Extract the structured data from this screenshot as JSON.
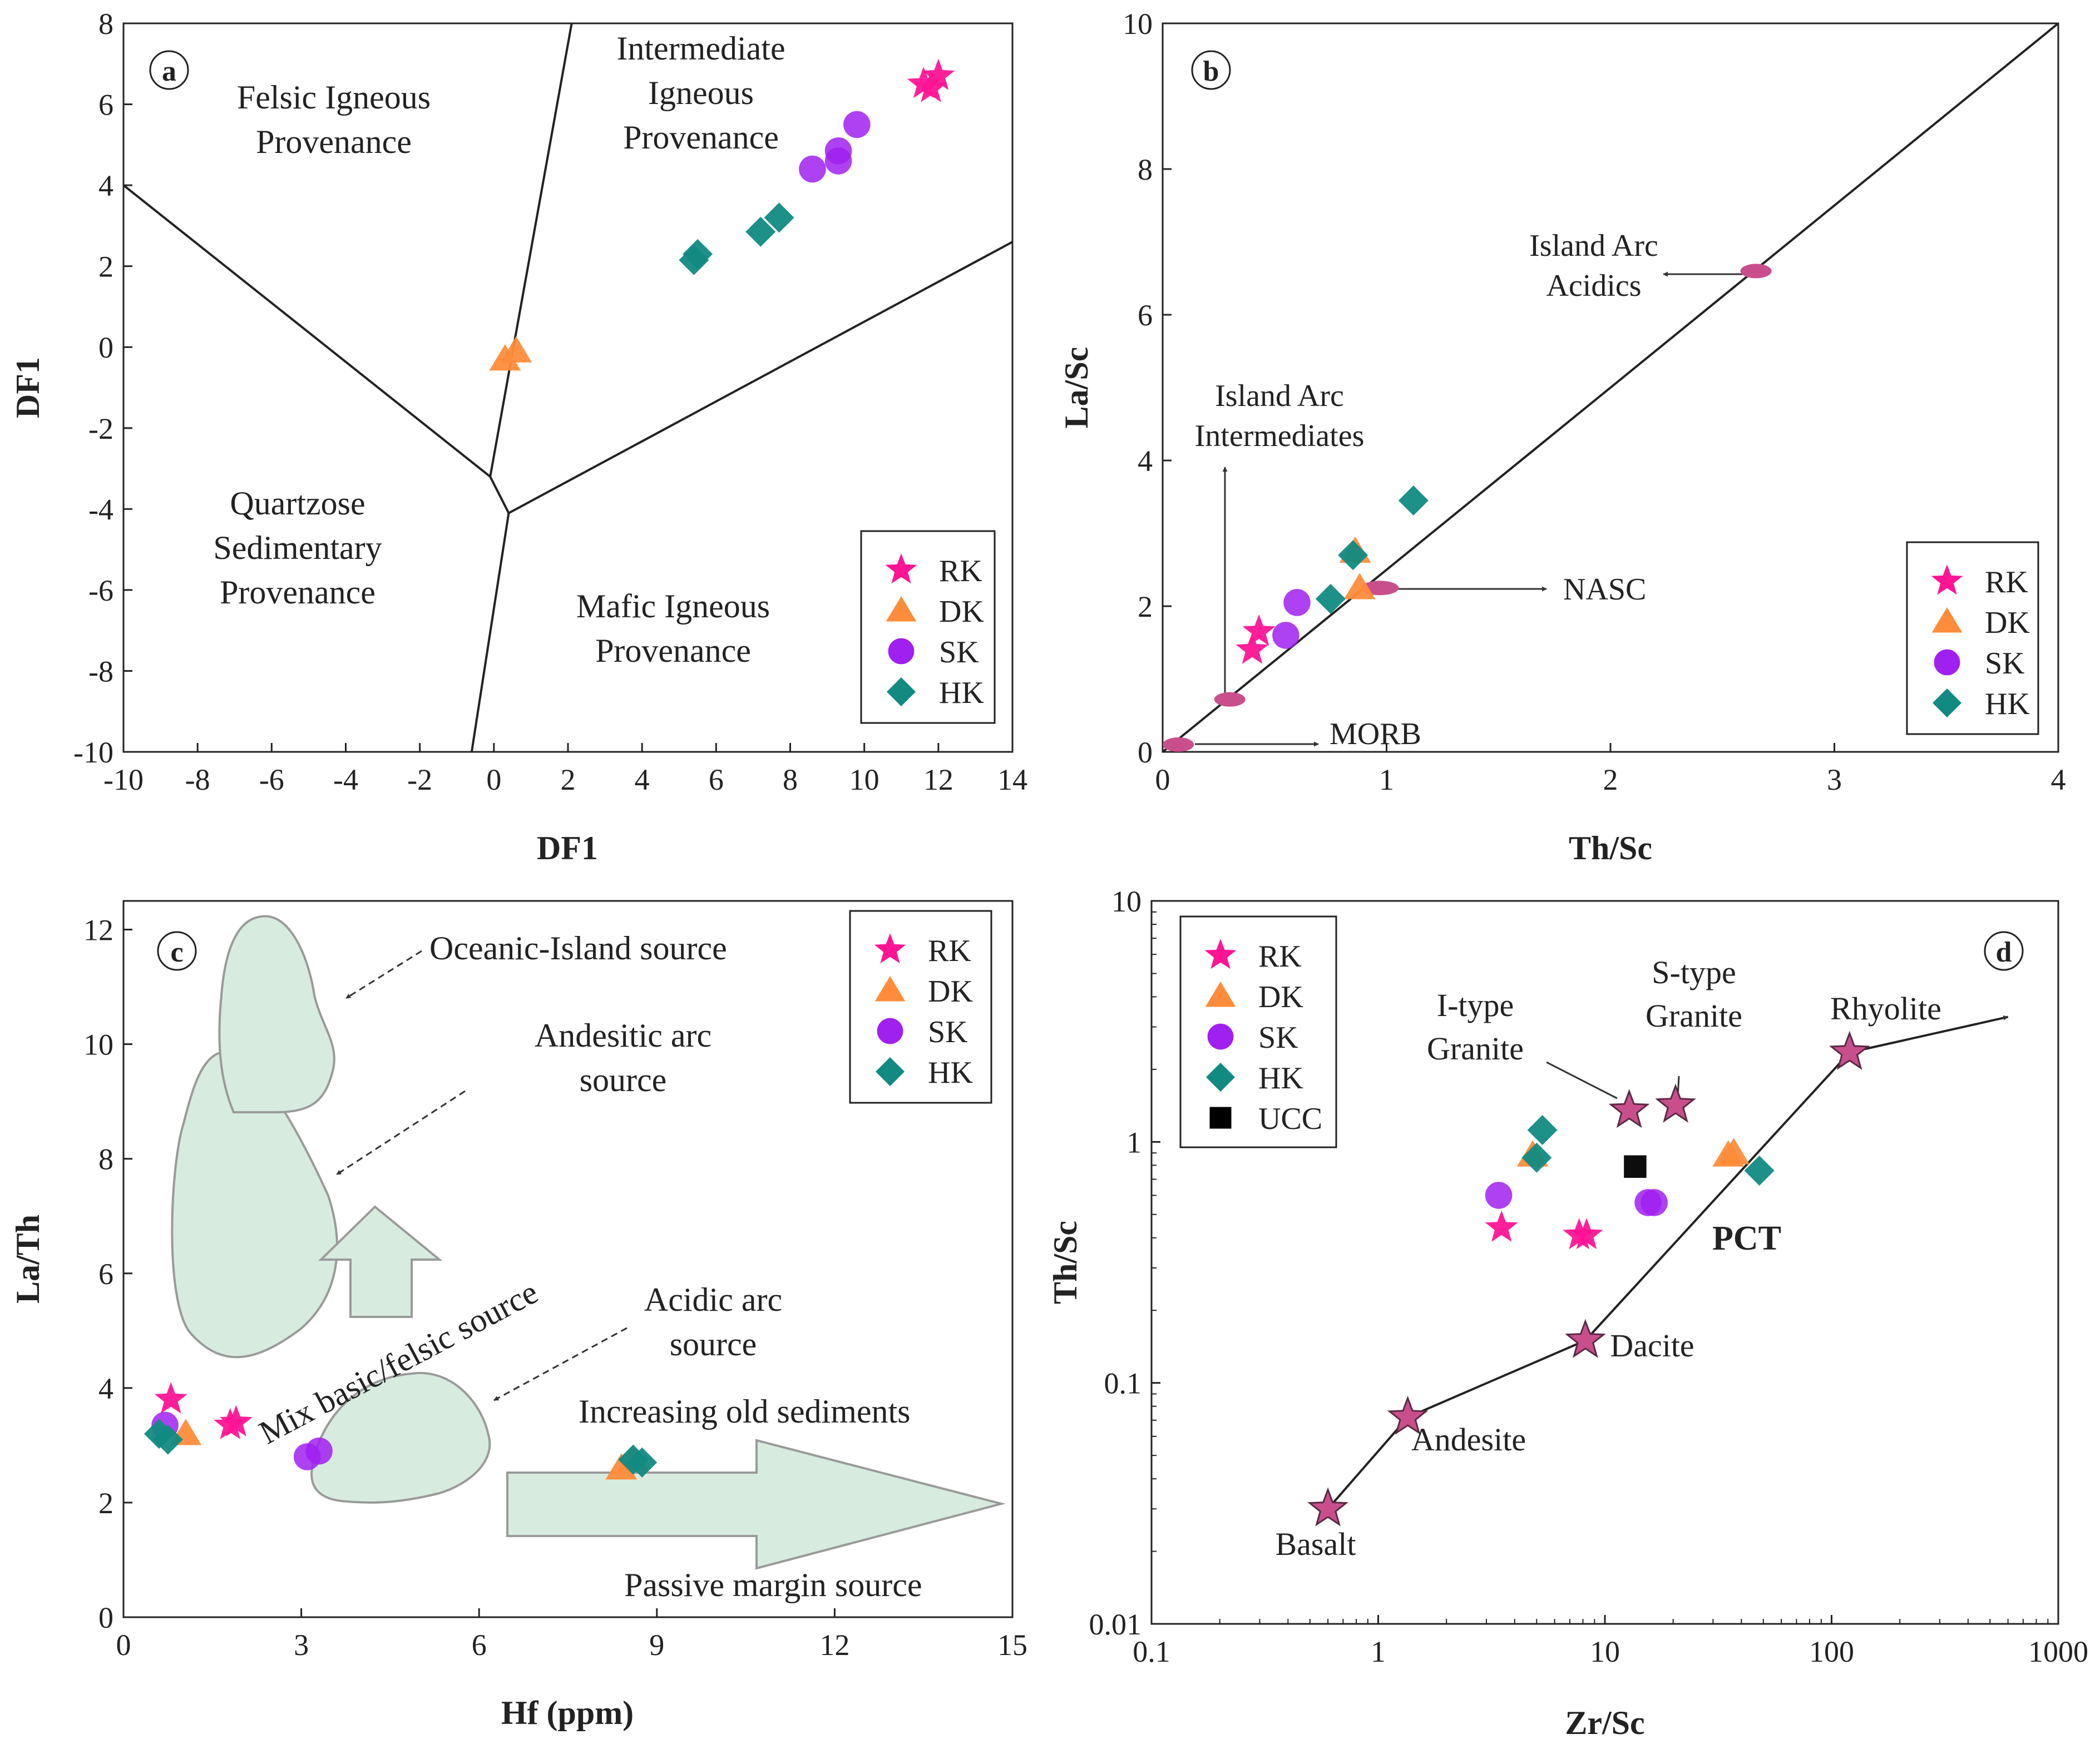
{
  "colors": {
    "RK": "#ff1493",
    "DK": "#ff8c3a",
    "SK": "#a020f0",
    "HK": "#118a82",
    "UCC": "#000000",
    "field_fill": "#d7ecdf",
    "field_stroke": "#9a9a9a",
    "ref_marker": "#c94f8c"
  },
  "chart_data": [
    {
      "panel": "a",
      "type": "scatter",
      "xlabel": "DF1",
      "ylabel": "DF1",
      "xlim": [
        -10,
        14
      ],
      "ylim": [
        -10,
        8
      ],
      "xticks": [
        "-10",
        "-8",
        "-6",
        "-4",
        "-2",
        "0",
        "2",
        "4",
        "6",
        "8",
        "10",
        "12",
        "14"
      ],
      "yticks": [
        "-10",
        "-8",
        "-6",
        "-4",
        "-2",
        "0",
        "2",
        "4",
        "6",
        "8"
      ],
      "legend": [
        "RK",
        "DK",
        "SK",
        "HK"
      ],
      "legend_position": "bottom-right",
      "fields": [
        {
          "name": "felsic",
          "label": [
            "Felsic Igneous",
            "Provenance"
          ]
        },
        {
          "name": "intermediate",
          "label": [
            "Intermediate",
            "Igneous",
            "Provenance"
          ]
        },
        {
          "name": "quartzose",
          "label": [
            "Quartzose",
            "Sedimentary",
            "Provenance"
          ]
        },
        {
          "name": "mafic",
          "label": [
            "Mafic Igneous",
            "Provenance"
          ]
        }
      ],
      "boundaries": [
        [
          [
            -10,
            4
          ],
          [
            -0.1,
            -3.2
          ]
        ],
        [
          [
            -0.1,
            -3.2
          ],
          [
            2.1,
            8
          ]
        ],
        [
          [
            -0.1,
            -3.2
          ],
          [
            0.4,
            -4.1
          ]
        ],
        [
          [
            0.4,
            -4.1
          ],
          [
            14,
            2.6
          ]
        ],
        [
          [
            0.4,
            -4.1
          ],
          [
            -0.6,
            -10
          ]
        ]
      ],
      "series": [
        {
          "name": "RK",
          "marker": "star",
          "points": [
            [
              11.6,
              6.5
            ],
            [
              11.8,
              6.4
            ],
            [
              12.0,
              6.7
            ]
          ]
        },
        {
          "name": "DK",
          "marker": "triangle",
          "points": [
            [
              0.3,
              -0.3
            ],
            [
              0.6,
              -0.1
            ]
          ]
        },
        {
          "name": "SK",
          "marker": "circle",
          "points": [
            [
              8.6,
              4.4
            ],
            [
              9.3,
              4.85
            ],
            [
              9.3,
              4.6
            ],
            [
              9.8,
              5.5
            ]
          ]
        },
        {
          "name": "HK",
          "marker": "diamond",
          "points": [
            [
              5.4,
              2.15
            ],
            [
              5.5,
              2.3
            ],
            [
              7.2,
              2.85
            ],
            [
              7.7,
              3.2
            ]
          ]
        }
      ]
    },
    {
      "panel": "b",
      "type": "scatter",
      "xlabel": "Th/Sc",
      "ylabel": "La/Sc",
      "xlim": [
        0,
        4
      ],
      "ylim": [
        0,
        10
      ],
      "xticks": [
        "0",
        "1",
        "2",
        "3",
        "4"
      ],
      "yticks": [
        "0",
        "2",
        "4",
        "6",
        "8",
        "10"
      ],
      "legend": [
        "RK",
        "DK",
        "SK",
        "HK"
      ],
      "legend_position": "bottom-right",
      "trend_line": [
        [
          0,
          0
        ],
        [
          4,
          10
        ]
      ],
      "reference_points": [
        {
          "name": "MORB",
          "x": 0.07,
          "y": 0.1
        },
        {
          "name": "Island Arc Intermediates",
          "x": 0.3,
          "y": 0.72
        },
        {
          "name": "NASC",
          "x": 0.97,
          "y": 2.25
        },
        {
          "name": "Island Arc Acidics",
          "x": 2.65,
          "y": 6.6
        }
      ],
      "annotations": {
        "morb": "MORB",
        "iai": [
          "Island Arc",
          "Intermediates"
        ],
        "nasc": "NASC",
        "iaa": [
          "Island Arc",
          "Acidics"
        ]
      },
      "series": [
        {
          "name": "RK",
          "marker": "star",
          "points": [
            [
              0.4,
              1.4
            ],
            [
              0.43,
              1.65
            ]
          ]
        },
        {
          "name": "DK",
          "marker": "triangle",
          "points": [
            [
              0.86,
              2.75
            ],
            [
              0.88,
              2.25
            ]
          ]
        },
        {
          "name": "SK",
          "marker": "circle",
          "points": [
            [
              0.55,
              1.6
            ],
            [
              0.6,
              2.05
            ]
          ]
        },
        {
          "name": "HK",
          "marker": "diamond",
          "points": [
            [
              0.75,
              2.1
            ],
            [
              0.85,
              2.7
            ],
            [
              1.12,
              3.45
            ]
          ]
        }
      ]
    },
    {
      "panel": "c",
      "type": "scatter",
      "xlabel": "Hf (ppm)",
      "ylabel": "La/Th",
      "xlim": [
        0,
        15
      ],
      "ylim": [
        0,
        12.5
      ],
      "xticks": [
        "0",
        "3",
        "6",
        "9",
        "12",
        "15"
      ],
      "yticks": [
        "0",
        "2",
        "4",
        "6",
        "8",
        "10",
        "12"
      ],
      "legend": [
        "RK",
        "DK",
        "SK",
        "HK"
      ],
      "legend_position": "top-right",
      "field_labels": {
        "oceanic": "Oceanic-Island source",
        "andesitic": [
          "Andesitic arc",
          "source"
        ],
        "mix": "Mix basic/felsic source",
        "acidic": [
          "Acidic arc",
          "source"
        ],
        "old_sediments": "Increasing old sediments",
        "passive": "Passive margin source"
      },
      "series": [
        {
          "name": "RK",
          "marker": "star",
          "points": [
            [
              0.8,
              3.8
            ],
            [
              1.8,
              3.35
            ],
            [
              1.9,
              3.4
            ]
          ]
        },
        {
          "name": "DK",
          "marker": "triangle",
          "points": [
            [
              1.05,
              3.2
            ],
            [
              8.4,
              2.6
            ],
            [
              8.6,
              2.75
            ]
          ]
        },
        {
          "name": "SK",
          "marker": "circle",
          "points": [
            [
              0.7,
              3.35
            ],
            [
              3.1,
              2.8
            ],
            [
              3.3,
              2.9
            ]
          ]
        },
        {
          "name": "HK",
          "marker": "diamond",
          "points": [
            [
              0.6,
              3.2
            ],
            [
              0.75,
              3.1
            ],
            [
              8.6,
              2.75
            ],
            [
              8.75,
              2.7
            ]
          ]
        }
      ]
    },
    {
      "panel": "d",
      "type": "scatter",
      "scale": "log-log",
      "xlabel": "Zr/Sc",
      "ylabel": "Th/Sc",
      "xlim": [
        0.1,
        1000
      ],
      "ylim": [
        0.01,
        10
      ],
      "xticks": [
        "0.1",
        "1",
        "10",
        "100",
        "1000"
      ],
      "yticks": [
        "0.01",
        "0.1",
        "1",
        "10"
      ],
      "legend": [
        "RK",
        "DK",
        "SK",
        "HK",
        "UCC"
      ],
      "legend_position": "top-left",
      "pct_label": "PCT",
      "pct_trend": [
        {
          "name": "Basalt",
          "x": 0.6,
          "y": 0.03
        },
        {
          "name": "Andesite",
          "x": 1.35,
          "y": 0.072
        },
        {
          "name": "Dacite",
          "x": 8.2,
          "y": 0.15
        },
        {
          "name": "Rhyolite",
          "x": 120,
          "y": 2.35
        }
      ],
      "pct_arrow_end": {
        "x": 600,
        "y": 3.3
      },
      "granites": [
        {
          "name": "I-type Granite",
          "label": [
            "I-type",
            "Granite"
          ],
          "x": 12.8,
          "y": 1.35
        },
        {
          "name": "S-type Granite",
          "label": [
            "S-type",
            "Granite"
          ],
          "x": 20.5,
          "y": 1.42
        }
      ],
      "series": [
        {
          "name": "RK",
          "marker": "star",
          "points": [
            [
              3.5,
              0.44
            ],
            [
              7.7,
              0.41
            ],
            [
              8.3,
              0.41
            ]
          ]
        },
        {
          "name": "DK",
          "marker": "triangle",
          "points": [
            [
              4.8,
              0.88
            ],
            [
              35,
              0.88
            ],
            [
              37,
              0.9
            ]
          ]
        },
        {
          "name": "SK",
          "marker": "circle",
          "points": [
            [
              3.4,
              0.6
            ],
            [
              15.5,
              0.56
            ],
            [
              16.5,
              0.56
            ]
          ]
        },
        {
          "name": "HK",
          "marker": "diamond",
          "points": [
            [
              5.0,
              0.86
            ],
            [
              5.3,
              1.12
            ],
            [
              48,
              0.76
            ]
          ]
        },
        {
          "name": "UCC",
          "marker": "square",
          "points": [
            [
              13.6,
              0.79
            ]
          ]
        }
      ]
    }
  ]
}
